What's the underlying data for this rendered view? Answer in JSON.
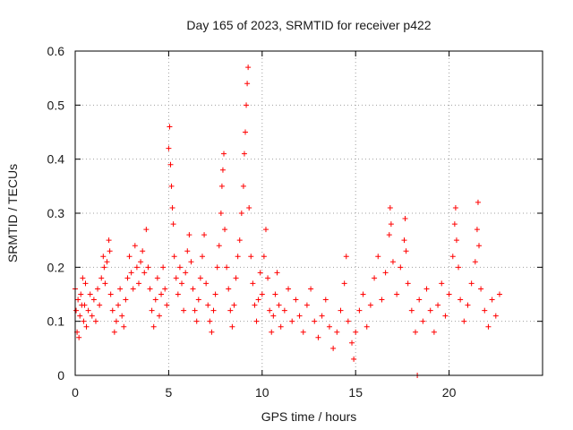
{
  "chart_data": {
    "type": "scatter",
    "title": "Day 165 of 2023, SRMTID for receiver p422",
    "xlabel": "GPS time / hours",
    "ylabel": "SRMTID / TECUs",
    "xlim": [
      0,
      25
    ],
    "ylim": [
      0,
      0.6
    ],
    "xticks": [
      0,
      5,
      10,
      15,
      20
    ],
    "xtick_labels": [
      "0",
      "5",
      "10",
      "15",
      "20"
    ],
    "yticks": [
      0,
      0.1,
      0.2,
      0.3,
      0.4,
      0.5,
      0.6
    ],
    "ytick_labels": [
      "0",
      "0.1",
      "0.2",
      "0.3",
      "0.4",
      "0.5",
      "0.6"
    ],
    "grid": true,
    "marker": "plus",
    "color": "#ff0000",
    "series": [
      {
        "name": "SRMTID",
        "points": [
          [
            0.0,
            0.16
          ],
          [
            0.05,
            0.12
          ],
          [
            0.1,
            0.08
          ],
          [
            0.15,
            0.14
          ],
          [
            0.2,
            0.07
          ],
          [
            0.25,
            0.11
          ],
          [
            0.3,
            0.15
          ],
          [
            0.35,
            0.13
          ],
          [
            0.4,
            0.18
          ],
          [
            0.45,
            0.1
          ],
          [
            0.5,
            0.13
          ],
          [
            0.55,
            0.17
          ],
          [
            0.6,
            0.09
          ],
          [
            0.7,
            0.12
          ],
          [
            0.8,
            0.15
          ],
          [
            0.9,
            0.11
          ],
          [
            1.0,
            0.14
          ],
          [
            1.1,
            0.1
          ],
          [
            1.2,
            0.16
          ],
          [
            1.3,
            0.13
          ],
          [
            1.4,
            0.18
          ],
          [
            1.5,
            0.22
          ],
          [
            1.55,
            0.2
          ],
          [
            1.6,
            0.17
          ],
          [
            1.7,
            0.21
          ],
          [
            1.8,
            0.25
          ],
          [
            1.85,
            0.23
          ],
          [
            1.9,
            0.15
          ],
          [
            2.0,
            0.12
          ],
          [
            2.1,
            0.08
          ],
          [
            2.2,
            0.1
          ],
          [
            2.3,
            0.13
          ],
          [
            2.4,
            0.16
          ],
          [
            2.5,
            0.11
          ],
          [
            2.6,
            0.09
          ],
          [
            2.7,
            0.14
          ],
          [
            2.8,
            0.18
          ],
          [
            2.9,
            0.22
          ],
          [
            3.0,
            0.19
          ],
          [
            3.1,
            0.16
          ],
          [
            3.2,
            0.24
          ],
          [
            3.3,
            0.2
          ],
          [
            3.4,
            0.17
          ],
          [
            3.5,
            0.21
          ],
          [
            3.6,
            0.23
          ],
          [
            3.7,
            0.19
          ],
          [
            3.8,
            0.27
          ],
          [
            3.9,
            0.2
          ],
          [
            4.0,
            0.16
          ],
          [
            4.1,
            0.12
          ],
          [
            4.2,
            0.09
          ],
          [
            4.3,
            0.14
          ],
          [
            4.4,
            0.18
          ],
          [
            4.5,
            0.11
          ],
          [
            4.6,
            0.15
          ],
          [
            4.7,
            0.2
          ],
          [
            4.8,
            0.16
          ],
          [
            4.9,
            0.13
          ],
          [
            5.0,
            0.42
          ],
          [
            5.05,
            0.46
          ],
          [
            5.1,
            0.39
          ],
          [
            5.15,
            0.35
          ],
          [
            5.2,
            0.31
          ],
          [
            5.25,
            0.28
          ],
          [
            5.3,
            0.22
          ],
          [
            5.4,
            0.18
          ],
          [
            5.5,
            0.15
          ],
          [
            5.6,
            0.2
          ],
          [
            5.7,
            0.17
          ],
          [
            5.8,
            0.12
          ],
          [
            5.9,
            0.19
          ],
          [
            6.0,
            0.23
          ],
          [
            6.1,
            0.26
          ],
          [
            6.2,
            0.21
          ],
          [
            6.3,
            0.16
          ],
          [
            6.4,
            0.12
          ],
          [
            6.5,
            0.1
          ],
          [
            6.6,
            0.14
          ],
          [
            6.7,
            0.18
          ],
          [
            6.8,
            0.22
          ],
          [
            6.9,
            0.26
          ],
          [
            7.0,
            0.17
          ],
          [
            7.1,
            0.13
          ],
          [
            7.2,
            0.1
          ],
          [
            7.3,
            0.08
          ],
          [
            7.4,
            0.12
          ],
          [
            7.5,
            0.15
          ],
          [
            7.6,
            0.2
          ],
          [
            7.7,
            0.24
          ],
          [
            7.8,
            0.3
          ],
          [
            7.85,
            0.35
          ],
          [
            7.9,
            0.38
          ],
          [
            7.95,
            0.41
          ],
          [
            8.0,
            0.27
          ],
          [
            8.1,
            0.2
          ],
          [
            8.2,
            0.16
          ],
          [
            8.3,
            0.12
          ],
          [
            8.4,
            0.09
          ],
          [
            8.5,
            0.13
          ],
          [
            8.6,
            0.18
          ],
          [
            8.7,
            0.22
          ],
          [
            8.8,
            0.25
          ],
          [
            8.9,
            0.3
          ],
          [
            9.0,
            0.35
          ],
          [
            9.05,
            0.41
          ],
          [
            9.1,
            0.45
          ],
          [
            9.15,
            0.5
          ],
          [
            9.2,
            0.54
          ],
          [
            9.25,
            0.57
          ],
          [
            9.3,
            0.31
          ],
          [
            9.4,
            0.22
          ],
          [
            9.5,
            0.17
          ],
          [
            9.6,
            0.13
          ],
          [
            9.7,
            0.1
          ],
          [
            9.8,
            0.14
          ],
          [
            9.9,
            0.19
          ],
          [
            10.0,
            0.15
          ],
          [
            10.1,
            0.22
          ],
          [
            10.2,
            0.27
          ],
          [
            10.3,
            0.18
          ],
          [
            10.4,
            0.12
          ],
          [
            10.5,
            0.08
          ],
          [
            10.6,
            0.11
          ],
          [
            10.7,
            0.15
          ],
          [
            10.8,
            0.19
          ],
          [
            10.9,
            0.13
          ],
          [
            11.0,
            0.09
          ],
          [
            11.2,
            0.12
          ],
          [
            11.4,
            0.16
          ],
          [
            11.6,
            0.1
          ],
          [
            11.8,
            0.14
          ],
          [
            12.0,
            0.11
          ],
          [
            12.2,
            0.08
          ],
          [
            12.4,
            0.13
          ],
          [
            12.6,
            0.16
          ],
          [
            12.8,
            0.1
          ],
          [
            13.0,
            0.07
          ],
          [
            13.2,
            0.11
          ],
          [
            13.4,
            0.14
          ],
          [
            13.6,
            0.09
          ],
          [
            13.8,
            0.05
          ],
          [
            14.0,
            0.08
          ],
          [
            14.2,
            0.12
          ],
          [
            14.4,
            0.17
          ],
          [
            14.5,
            0.22
          ],
          [
            14.6,
            0.1
          ],
          [
            14.8,
            0.06
          ],
          [
            14.9,
            0.03
          ],
          [
            15.0,
            0.08
          ],
          [
            15.2,
            0.12
          ],
          [
            15.4,
            0.15
          ],
          [
            15.6,
            0.09
          ],
          [
            15.8,
            0.13
          ],
          [
            16.0,
            0.18
          ],
          [
            16.2,
            0.22
          ],
          [
            16.4,
            0.14
          ],
          [
            16.6,
            0.19
          ],
          [
            16.8,
            0.26
          ],
          [
            16.85,
            0.31
          ],
          [
            16.9,
            0.28
          ],
          [
            17.0,
            0.21
          ],
          [
            17.2,
            0.15
          ],
          [
            17.4,
            0.2
          ],
          [
            17.6,
            0.25
          ],
          [
            17.65,
            0.29
          ],
          [
            17.7,
            0.23
          ],
          [
            17.8,
            0.17
          ],
          [
            18.0,
            0.12
          ],
          [
            18.2,
            0.08
          ],
          [
            18.3,
            0.0
          ],
          [
            18.4,
            0.14
          ],
          [
            18.6,
            0.1
          ],
          [
            18.8,
            0.16
          ],
          [
            19.0,
            0.12
          ],
          [
            19.2,
            0.08
          ],
          [
            19.4,
            0.13
          ],
          [
            19.6,
            0.17
          ],
          [
            19.8,
            0.11
          ],
          [
            20.0,
            0.15
          ],
          [
            20.2,
            0.22
          ],
          [
            20.3,
            0.28
          ],
          [
            20.35,
            0.31
          ],
          [
            20.4,
            0.25
          ],
          [
            20.5,
            0.2
          ],
          [
            20.6,
            0.14
          ],
          [
            20.8,
            0.1
          ],
          [
            21.0,
            0.13
          ],
          [
            21.2,
            0.17
          ],
          [
            21.4,
            0.21
          ],
          [
            21.5,
            0.27
          ],
          [
            21.55,
            0.32
          ],
          [
            21.6,
            0.24
          ],
          [
            21.7,
            0.16
          ],
          [
            21.9,
            0.12
          ],
          [
            22.1,
            0.09
          ],
          [
            22.3,
            0.14
          ],
          [
            22.5,
            0.11
          ],
          [
            22.7,
            0.15
          ]
        ]
      }
    ]
  }
}
